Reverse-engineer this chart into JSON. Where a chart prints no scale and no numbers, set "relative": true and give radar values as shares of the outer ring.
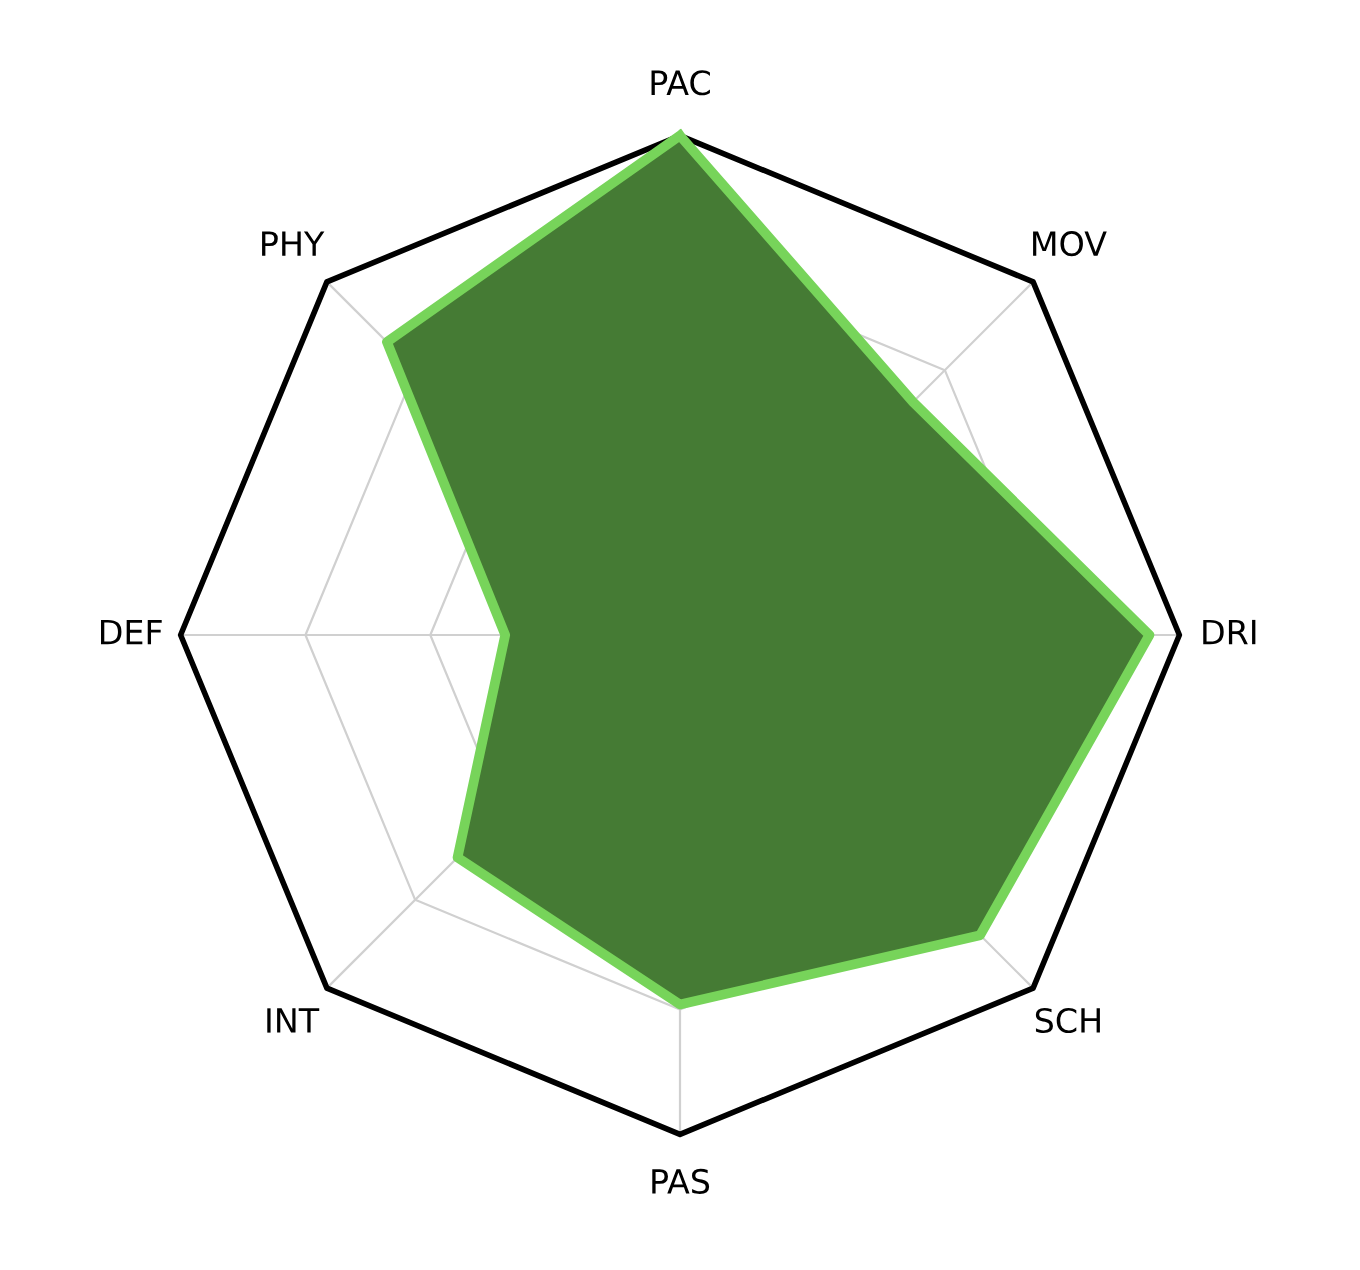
{
  "chart_data": {
    "type": "radar",
    "relative": true,
    "grid": true,
    "categories": [
      "PAC",
      "MOV",
      "DRI",
      "SCH",
      "PAS",
      "INT",
      "DEF",
      "PHY"
    ],
    "series": [
      {
        "color": "#77d45a",
        "values": [
          1.0,
          0.66,
          0.94,
          0.85,
          0.74,
          0.63,
          0.35,
          0.83
        ]
      }
    ]
  }
}
